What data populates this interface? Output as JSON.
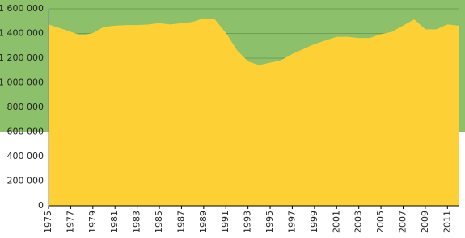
{
  "chart_data": {
    "type": "area",
    "x": [
      1975,
      1976,
      1977,
      1978,
      1979,
      1980,
      1981,
      1982,
      1983,
      1984,
      1985,
      1986,
      1987,
      1988,
      1989,
      1990,
      1991,
      1992,
      1993,
      1994,
      1995,
      1996,
      1997,
      1998,
      1999,
      2000,
      2001,
      2002,
      2003,
      2004,
      2005,
      2006,
      2007,
      2008,
      2009,
      2010,
      2011,
      2012
    ],
    "values": [
      1470000,
      1440000,
      1410000,
      1380000,
      1400000,
      1450000,
      1460000,
      1465000,
      1465000,
      1470000,
      1480000,
      1470000,
      1480000,
      1490000,
      1520000,
      1510000,
      1400000,
      1260000,
      1170000,
      1140000,
      1160000,
      1180000,
      1230000,
      1270000,
      1310000,
      1340000,
      1370000,
      1370000,
      1360000,
      1360000,
      1390000,
      1410000,
      1460000,
      1510000,
      1430000,
      1430000,
      1470000,
      1460000
    ],
    "color": "#fdd036",
    "band_from": 600000,
    "band_color": "#8cc06a",
    "xlim": [
      1975,
      2012
    ],
    "xticks": [
      1975,
      1977,
      1979,
      1981,
      1983,
      1985,
      1987,
      1989,
      1991,
      1993,
      1995,
      1997,
      1999,
      2001,
      2003,
      2005,
      2007,
      2009,
      2011
    ],
    "ylim": [
      0,
      1600000
    ],
    "yticks": [
      0,
      {
        "value": 200000,
        "label": "200 000"
      },
      {
        "value": 400000,
        "label": "400 000"
      },
      {
        "value": 600000,
        "label": "600 000"
      },
      {
        "value": 800000,
        "label": "800 000"
      },
      {
        "value": 1000000,
        "label": "1 000 000"
      },
      {
        "value": 1200000,
        "label": "1 200 000"
      },
      {
        "value": 1400000,
        "label": "1 400 000"
      },
      {
        "value": 1600000,
        "label": "1 600 000"
      }
    ],
    "grid": true
  }
}
